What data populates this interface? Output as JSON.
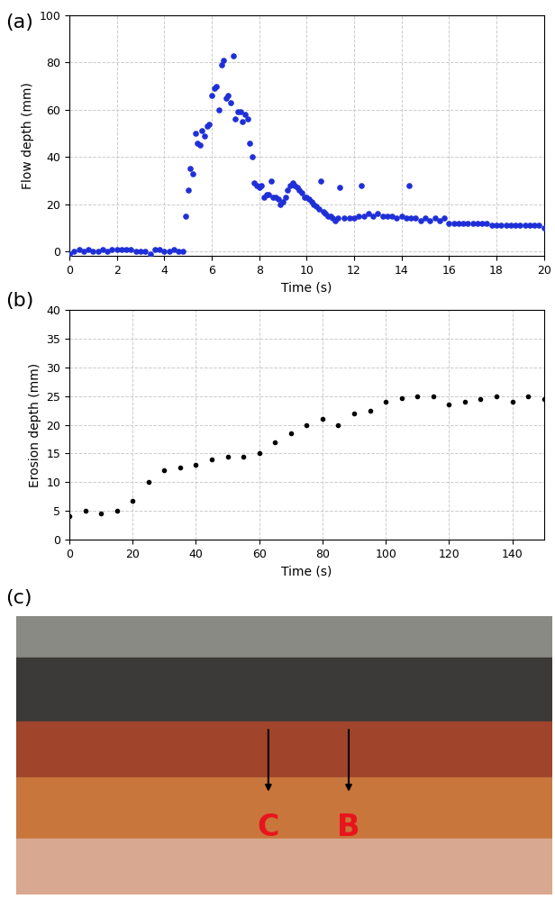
{
  "chart_data": [
    {
      "type": "scatter",
      "panel": "(a)",
      "x_label": "Time (s)",
      "y_label": "Flow depth (mm)",
      "color": "#1f2fd8",
      "grid": true,
      "xlim": [
        0,
        20
      ],
      "xticks": [
        0,
        2,
        4,
        6,
        8,
        10,
        12,
        14,
        16,
        18,
        20
      ],
      "ylim": [
        -2,
        100
      ],
      "yticks": [
        0,
        20,
        40,
        60,
        80,
        100
      ],
      "x": [
        0,
        0.2,
        0.4,
        0.6,
        0.8,
        1.0,
        1.2,
        1.4,
        1.6,
        1.8,
        2.0,
        2.2,
        2.4,
        2.6,
        2.8,
        3.0,
        3.2,
        3.4,
        3.6,
        3.8,
        4.0,
        4.2,
        4.4,
        4.6,
        4.8,
        4.9,
        5.0,
        5.1,
        5.2,
        5.3,
        5.4,
        5.5,
        5.6,
        5.7,
        5.8,
        5.9,
        6.0,
        6.1,
        6.2,
        6.3,
        6.4,
        6.5,
        6.6,
        6.7,
        6.8,
        6.9,
        7.0,
        7.1,
        7.2,
        7.3,
        7.4,
        7.5,
        7.6,
        7.7,
        7.8,
        7.9,
        8.0,
        8.1,
        8.2,
        8.3,
        8.4,
        8.5,
        8.6,
        8.7,
        8.8,
        8.9,
        9.0,
        9.1,
        9.2,
        9.3,
        9.4,
        9.5,
        9.6,
        9.7,
        9.8,
        9.9,
        10.0,
        10.1,
        10.2,
        10.3,
        10.4,
        10.5,
        10.6,
        10.7,
        10.8,
        10.9,
        11.0,
        11.1,
        11.2,
        11.3,
        11.4,
        11.6,
        11.8,
        12.0,
        12.2,
        12.3,
        12.4,
        12.6,
        12.8,
        13.0,
        13.2,
        13.4,
        13.6,
        13.8,
        14.0,
        14.2,
        14.3,
        14.4,
        14.6,
        14.8,
        15.0,
        15.2,
        15.4,
        15.6,
        15.8,
        16.0,
        16.2,
        16.4,
        16.6,
        16.8,
        17.0,
        17.2,
        17.4,
        17.6,
        17.8,
        18.0,
        18.2,
        18.4,
        18.6,
        18.8,
        19.0,
        19.2,
        19.4,
        19.6,
        19.8,
        20.0
      ],
      "values": [
        -1,
        0,
        1,
        0,
        1,
        0,
        0,
        1,
        0,
        1,
        1,
        1,
        1,
        1,
        0,
        0,
        0,
        -1,
        1,
        1,
        0,
        0,
        1,
        0,
        0,
        15,
        26,
        35,
        33,
        50,
        46,
        45,
        51,
        49,
        53,
        54,
        66,
        69,
        70,
        60,
        79,
        81,
        65,
        66,
        63,
        83,
        56,
        59,
        59,
        55,
        58,
        56,
        46,
        40,
        29,
        28,
        27,
        28,
        23,
        24,
        24,
        30,
        23,
        23,
        22,
        20,
        21,
        23,
        26,
        28,
        29,
        28,
        27,
        26,
        25,
        23,
        23,
        22,
        21,
        20,
        19,
        18,
        30,
        17,
        16,
        15,
        15,
        14,
        13,
        14,
        27,
        14,
        14,
        14,
        15,
        28,
        15,
        16,
        15,
        16,
        15,
        15,
        15,
        14,
        15,
        14,
        28,
        14,
        14,
        13,
        14,
        13,
        14,
        13,
        14,
        12,
        12,
        12,
        12,
        12,
        12,
        12,
        12,
        12,
        11,
        11,
        11,
        11,
        11,
        11,
        11,
        11,
        11,
        11,
        11,
        10
      ]
    },
    {
      "type": "scatter",
      "panel": "(b)",
      "x_label": "Time (s)",
      "y_label": "Erosion depth (mm)",
      "color": "#000000",
      "grid": true,
      "xlim": [
        0,
        150
      ],
      "xticks": [
        0,
        20,
        40,
        60,
        80,
        100,
        120,
        140
      ],
      "ylim": [
        0,
        40
      ],
      "yticks": [
        0,
        5,
        10,
        15,
        20,
        25,
        30,
        35,
        40
      ],
      "x": [
        0,
        5,
        10,
        15,
        20,
        25,
        30,
        35,
        40,
        45,
        50,
        55,
        60,
        65,
        70,
        75,
        80,
        85,
        90,
        95,
        100,
        105,
        110,
        115,
        120,
        125,
        130,
        135,
        140,
        145,
        150
      ],
      "values": [
        4,
        5,
        4.5,
        5,
        6.7,
        10,
        12,
        12.5,
        13,
        14,
        14.5,
        14.5,
        15,
        17,
        18.5,
        20,
        21,
        20,
        22,
        22.5,
        24,
        24.7,
        25,
        25,
        23.5,
        24,
        24.5,
        25,
        24,
        25,
        24.5
      ]
    }
  ],
  "photo": {
    "panel": "(c)",
    "labels": [
      "C",
      "B"
    ]
  }
}
